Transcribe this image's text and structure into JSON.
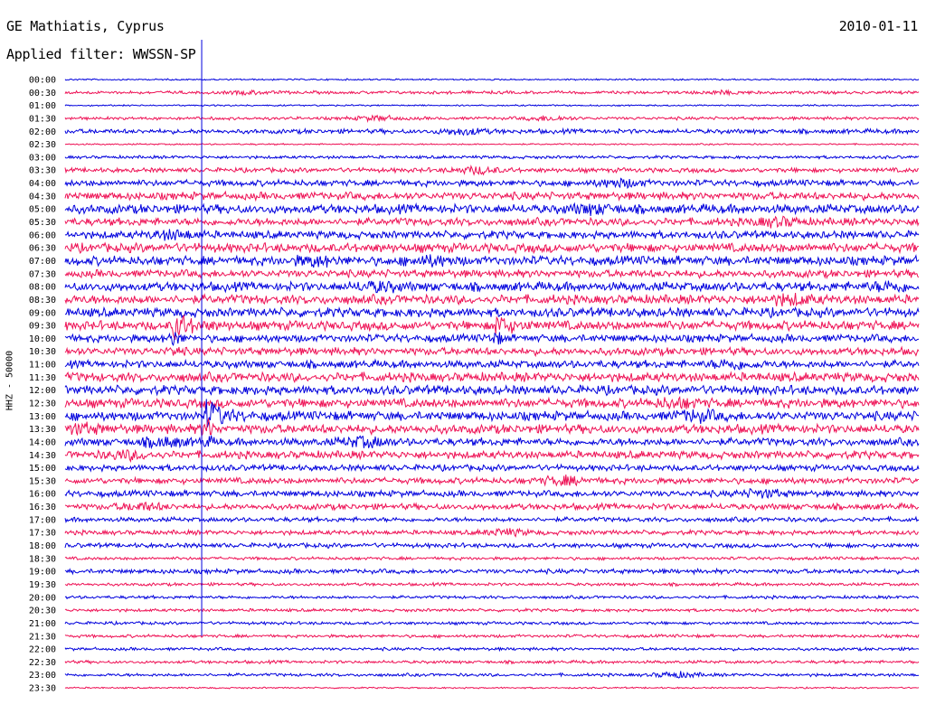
{
  "header": {
    "station": "GE Mathiatis, Cyprus",
    "date": "2010-01-11",
    "filter_label": "Applied filter: WWSSN-SP"
  },
  "chart_data": {
    "type": "line",
    "title": "GE Mathiatis, Cyprus",
    "ylabel": "HHZ - 50000",
    "rows": [
      "00:00",
      "00:30",
      "01:00",
      "01:30",
      "02:00",
      "02:30",
      "03:00",
      "03:30",
      "04:00",
      "04:30",
      "05:00",
      "05:30",
      "06:00",
      "06:30",
      "07:00",
      "07:30",
      "08:00",
      "08:30",
      "09:00",
      "09:30",
      "10:00",
      "10:30",
      "11:00",
      "11:30",
      "12:00",
      "12:30",
      "13:00",
      "13:30",
      "14:00",
      "14:30",
      "15:00",
      "15:30",
      "16:00",
      "16:30",
      "17:00",
      "17:30",
      "18:00",
      "18:30",
      "19:00",
      "19:30",
      "20:00",
      "20:30",
      "21:00",
      "21:30",
      "22:00",
      "22:30",
      "23:00",
      "23:30"
    ],
    "row_colors": [
      "#0000dd",
      "#ee1155"
    ],
    "noise_level": [
      1,
      2,
      1,
      2,
      3,
      1,
      2,
      3,
      4,
      5,
      6,
      5,
      5,
      6,
      6,
      5,
      6,
      6,
      6,
      6,
      5,
      5,
      5,
      6,
      6,
      6,
      6,
      6,
      5,
      5,
      4,
      4,
      4,
      4,
      3,
      3,
      3,
      2,
      3,
      2,
      2,
      2,
      2,
      2,
      2,
      2,
      2,
      1
    ],
    "bursts": [
      {
        "row": 1,
        "minute": 6.5,
        "amp": 1.2
      },
      {
        "row": 1,
        "minute": 23,
        "amp": 1.3
      },
      {
        "row": 3,
        "minute": 11,
        "amp": 2.0
      },
      {
        "row": 3,
        "minute": 17,
        "amp": 2.0
      },
      {
        "row": 4,
        "minute": 14,
        "amp": 2.6
      },
      {
        "row": 7,
        "minute": 14.5,
        "amp": 3.0
      },
      {
        "row": 8,
        "minute": 19.5,
        "amp": 3.0
      },
      {
        "row": 10,
        "minute": 18.5,
        "amp": 3.0
      },
      {
        "row": 11,
        "minute": 25,
        "amp": 3.0
      },
      {
        "row": 12,
        "minute": 3.8,
        "amp": 3.2
      },
      {
        "row": 14,
        "minute": 8.8,
        "amp": 3.2
      },
      {
        "row": 14,
        "minute": 12.8,
        "amp": 3.0
      },
      {
        "row": 16,
        "minute": 11,
        "amp": 3.0
      },
      {
        "row": 16,
        "minute": 29,
        "amp": 3.0
      },
      {
        "row": 17,
        "minute": 25.5,
        "amp": 3.5
      },
      {
        "row": 22,
        "minute": 23.5,
        "amp": 3.2
      },
      {
        "row": 25,
        "minute": 21.5,
        "amp": 3.0
      },
      {
        "row": 26,
        "minute": 22.2,
        "amp": 3.5
      },
      {
        "row": 27,
        "minute": 0.5,
        "amp": 3.2
      },
      {
        "row": 28,
        "minute": 3.5,
        "amp": 3.5
      },
      {
        "row": 28,
        "minute": 10.5,
        "amp": 3.8
      },
      {
        "row": 29,
        "minute": 2.2,
        "amp": 3.0
      },
      {
        "row": 31,
        "minute": 17.5,
        "amp": 3.4
      },
      {
        "row": 32,
        "minute": 24.5,
        "amp": 3.0
      },
      {
        "row": 33,
        "minute": 2.7,
        "amp": 2.8
      },
      {
        "row": 35,
        "minute": 15.5,
        "amp": 2.6
      },
      {
        "row": 46,
        "minute": 21.5,
        "amp": 2.4
      }
    ],
    "events": [
      {
        "row": 19,
        "minute": 3.85,
        "amp": 14,
        "coda_rows": 3
      },
      {
        "row": 19,
        "minute": 15.15,
        "amp": 10,
        "coda_rows": 2
      },
      {
        "row": 26,
        "minute": 5.0,
        "amp": 16,
        "coda_rows": 3
      }
    ],
    "marker_minute": 4.8,
    "marker_end_row": 43
  }
}
